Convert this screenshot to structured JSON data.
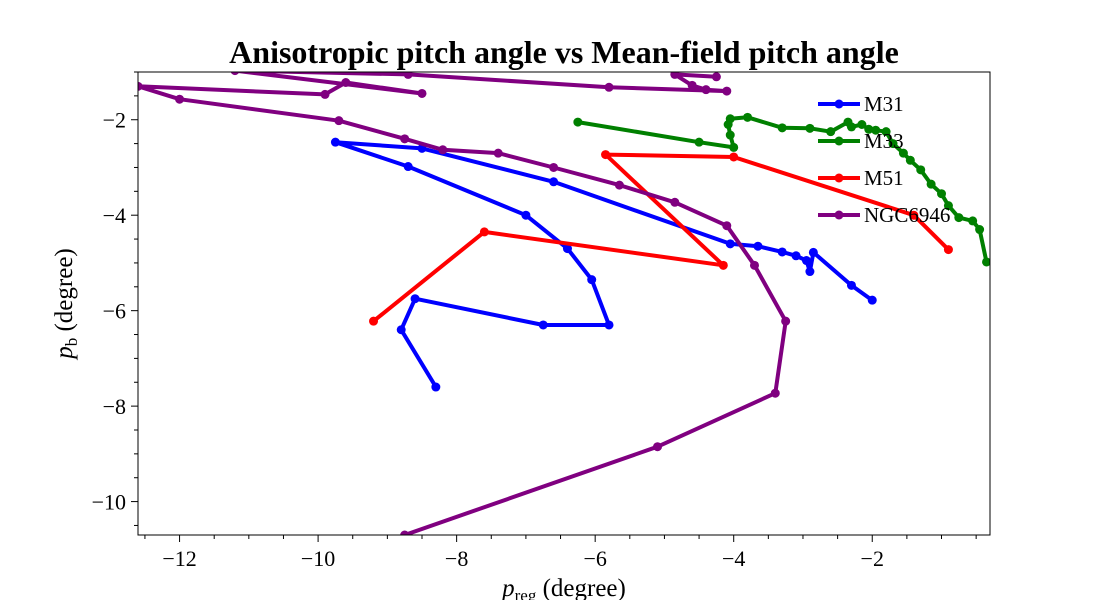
{
  "chart_data": {
    "type": "line",
    "title": "Anisotropic pitch angle vs Mean-field pitch angle",
    "xlabel": "p_reg (degree)",
    "ylabel": "p_b (degree)",
    "xlim": [
      -12.6,
      -0.3
    ],
    "ylim": [
      -10.7,
      -1.0
    ],
    "xticks": [
      -12,
      -10,
      -8,
      -6,
      -4,
      -2
    ],
    "yticks": [
      -10,
      -8,
      -6,
      -4,
      -2
    ],
    "grid": false,
    "legend_position": "top-right",
    "series": [
      {
        "name": "M31",
        "color": "#0000ff",
        "points": [
          [
            -8.3,
            -7.6
          ],
          [
            -8.8,
            -6.4
          ],
          [
            -8.6,
            -5.75
          ],
          [
            -6.75,
            -6.3
          ],
          [
            -5.8,
            -6.3
          ],
          [
            -6.05,
            -5.35
          ],
          [
            -6.4,
            -4.7
          ],
          [
            -7.0,
            -4.0
          ],
          [
            -8.7,
            -2.98
          ],
          [
            -9.75,
            -2.47
          ],
          [
            -8.5,
            -2.6
          ],
          [
            -6.6,
            -3.3
          ],
          [
            -4.05,
            -4.6
          ],
          [
            -3.65,
            -4.65
          ],
          [
            -3.3,
            -4.77
          ],
          [
            -3.1,
            -4.85
          ],
          [
            -2.95,
            -4.95
          ],
          [
            -2.9,
            -5.18
          ],
          [
            -2.85,
            -4.78
          ],
          [
            -2.3,
            -5.47
          ],
          [
            -2.0,
            -5.78
          ]
        ]
      },
      {
        "name": "M33",
        "color": "#008000",
        "points": [
          [
            -6.25,
            -2.05
          ],
          [
            -4.5,
            -2.47
          ],
          [
            -4.0,
            -2.58
          ],
          [
            -4.05,
            -2.32
          ],
          [
            -4.08,
            -2.1
          ],
          [
            -4.05,
            -1.98
          ],
          [
            -3.8,
            -1.95
          ],
          [
            -3.3,
            -2.17
          ],
          [
            -2.9,
            -2.18
          ],
          [
            -2.6,
            -2.25
          ],
          [
            -2.35,
            -2.05
          ],
          [
            -2.3,
            -2.15
          ],
          [
            -2.15,
            -2.1
          ],
          [
            -2.05,
            -2.2
          ],
          [
            -1.95,
            -2.22
          ],
          [
            -1.8,
            -2.25
          ],
          [
            -1.7,
            -2.5
          ],
          [
            -1.55,
            -2.7
          ],
          [
            -1.45,
            -2.85
          ],
          [
            -1.3,
            -3.05
          ],
          [
            -1.15,
            -3.35
          ],
          [
            -1.0,
            -3.55
          ],
          [
            -0.9,
            -3.8
          ],
          [
            -0.75,
            -4.05
          ],
          [
            -0.55,
            -4.12
          ],
          [
            -0.45,
            -4.3
          ],
          [
            -0.35,
            -4.98
          ]
        ]
      },
      {
        "name": "M51",
        "color": "#ff0000",
        "points": [
          [
            -9.2,
            -6.22
          ],
          [
            -7.6,
            -4.35
          ],
          [
            -4.15,
            -5.05
          ],
          [
            -5.85,
            -2.73
          ],
          [
            -4.0,
            -2.78
          ],
          [
            -1.4,
            -4.0
          ],
          [
            -0.9,
            -4.72
          ]
        ]
      },
      {
        "name": "NGC6946",
        "color": "#800080",
        "points": [
          [
            -8.75,
            -10.7
          ],
          [
            -5.1,
            -8.85
          ],
          [
            -3.4,
            -7.73
          ],
          [
            -3.25,
            -6.22
          ],
          [
            -3.7,
            -5.05
          ],
          [
            -4.1,
            -4.22
          ],
          [
            -4.85,
            -3.73
          ],
          [
            -5.65,
            -3.37
          ],
          [
            -6.6,
            -3.0
          ],
          [
            -7.4,
            -2.7
          ],
          [
            -8.2,
            -2.63
          ],
          [
            -8.75,
            -2.4
          ],
          [
            -9.7,
            -2.02
          ],
          [
            -12.0,
            -1.57
          ],
          [
            -12.6,
            -1.3
          ],
          [
            -9.9,
            -1.47
          ],
          [
            -9.6,
            -1.22
          ],
          [
            -8.5,
            -1.45
          ],
          [
            -11.2,
            -0.97
          ],
          [
            -8.7,
            -1.05
          ],
          [
            -5.8,
            -1.32
          ],
          [
            -4.1,
            -1.4
          ],
          [
            -4.4,
            -1.37
          ],
          [
            -4.6,
            -1.28
          ],
          [
            -4.85,
            -1.05
          ],
          [
            -4.25,
            -1.1
          ]
        ]
      }
    ]
  }
}
